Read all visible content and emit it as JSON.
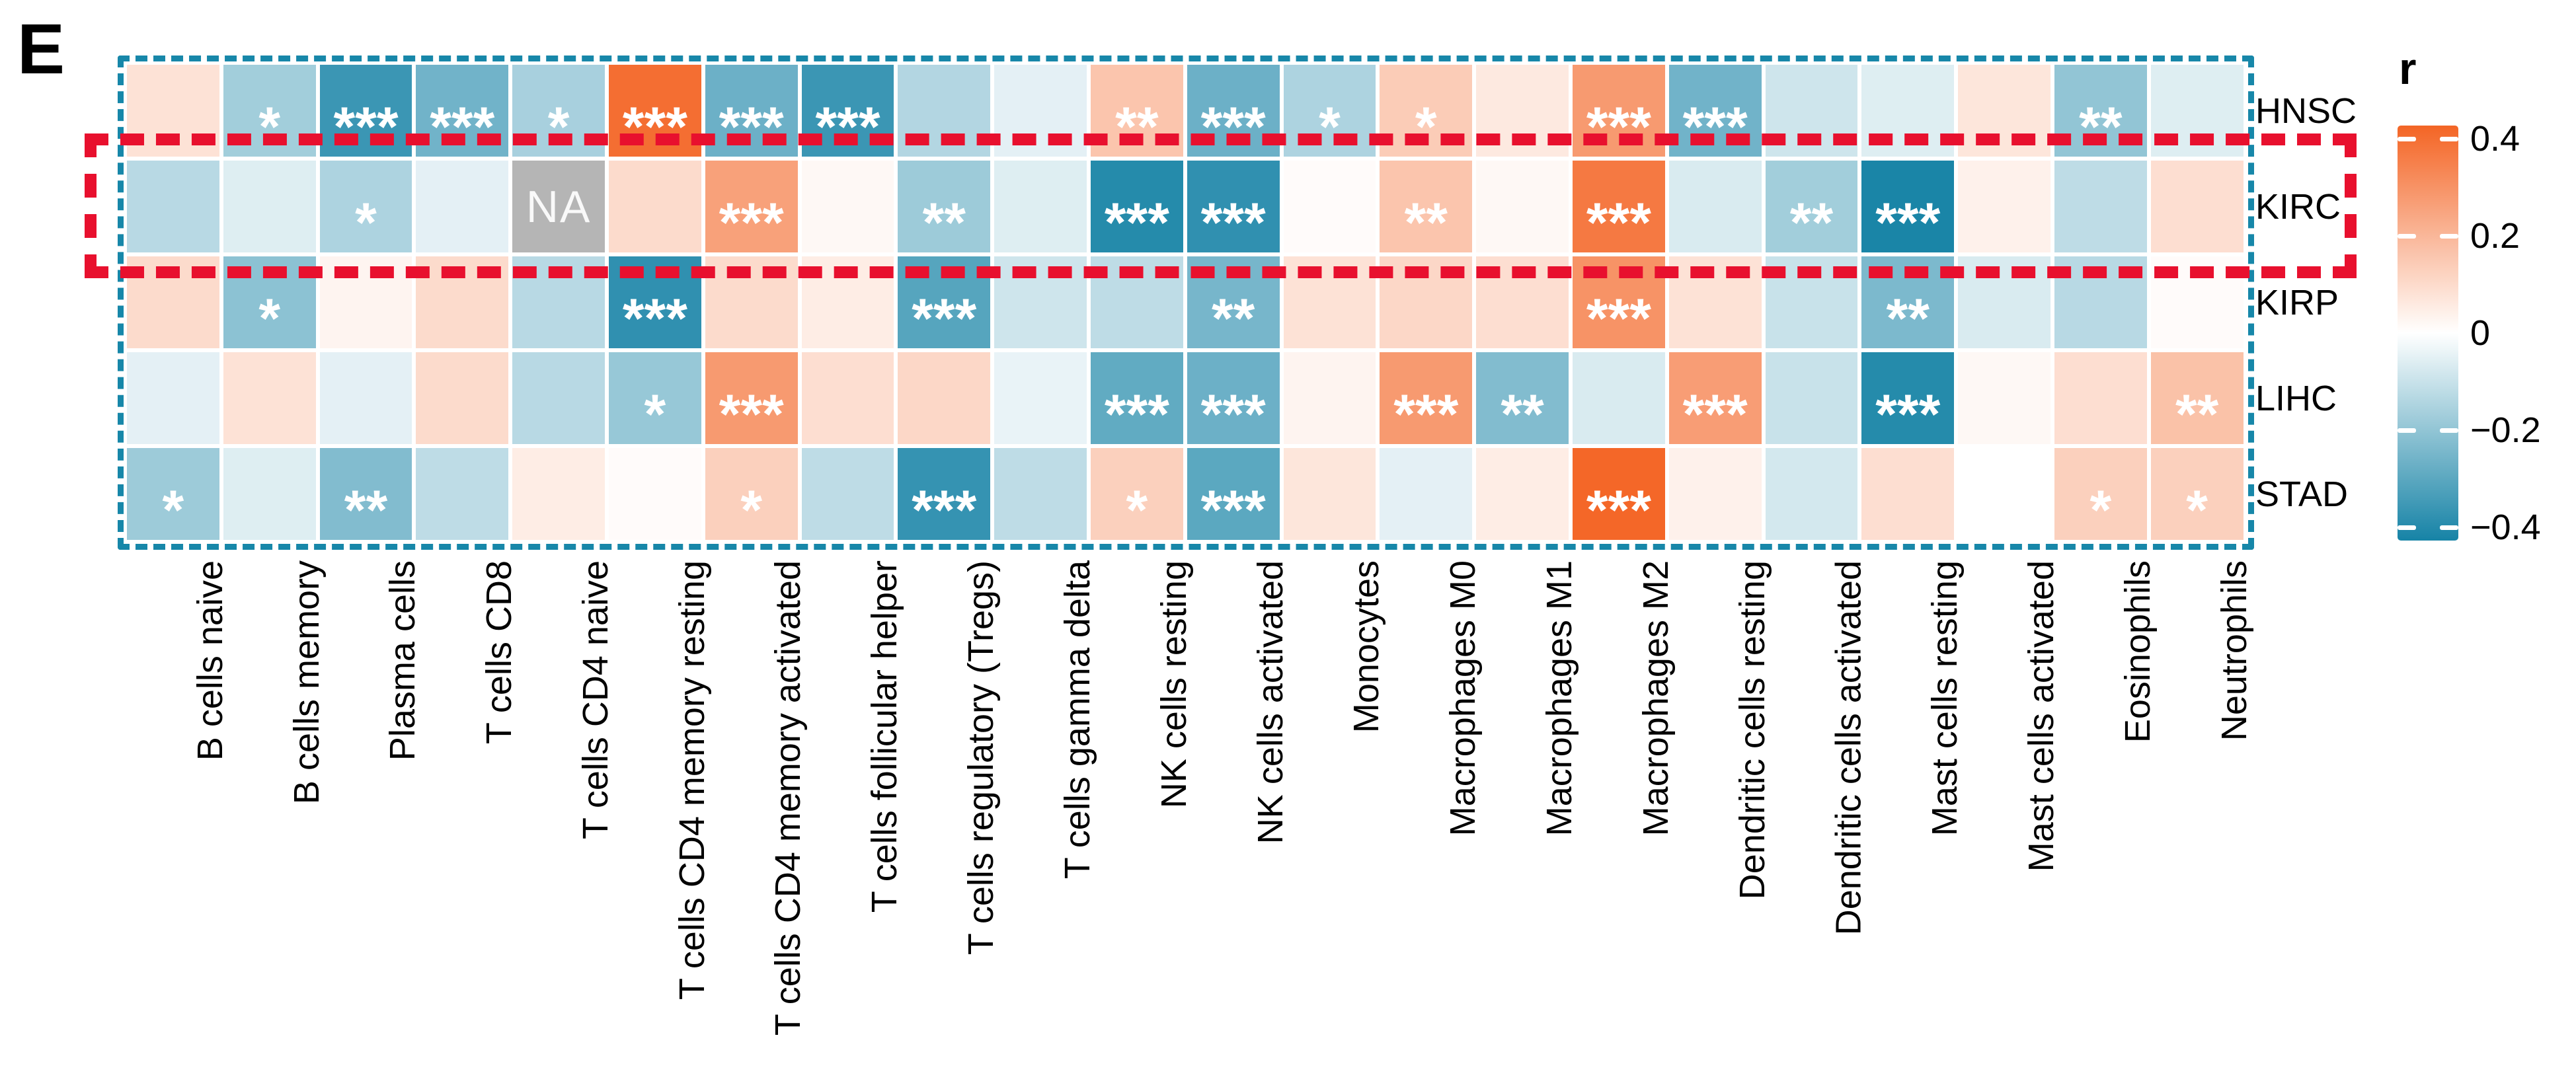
{
  "panel_label": "E",
  "na_label": "NA",
  "highlighted_row": "KIRC",
  "legend": {
    "title": "r",
    "ticks": [
      {
        "label": "0.4",
        "value": 0.4
      },
      {
        "label": "0.2",
        "value": 0.2
      },
      {
        "label": "0",
        "value": 0
      },
      {
        "label": "−0.2",
        "value": -0.2
      },
      {
        "label": "−0.4",
        "value": -0.4
      }
    ]
  },
  "colors": {
    "positive_max": "#f3601e",
    "negative_max": "#0f7fa3",
    "na_cell": "#b5b5b5",
    "na_text": "#ffffff",
    "star": "#ffffff",
    "outline_box": "#1787a9",
    "highlight_box": "#e8102e",
    "vmax": 0.44
  },
  "chart_data": {
    "type": "heatmap",
    "title": "",
    "colorbar": {
      "label": "r",
      "range": [
        -0.44,
        0.44
      ],
      "tick_values": [
        0.4,
        0.2,
        0,
        -0.2,
        -0.4
      ]
    },
    "note": "null value means NA (not available); significance codes shown as asterisks",
    "columns": [
      "B cells naive",
      "B cells memory",
      "Plasma cells",
      "T cells CD8",
      "T cells CD4 naive",
      "T cells CD4 memory resting",
      "T cells CD4 memory activated",
      "T cells follicular helper",
      "T cells regulatory (Tregs)",
      "T cells gamma delta",
      "NK cells resting",
      "NK cells activated",
      "Monocytes",
      "Macrophages M0",
      "Macrophages M1",
      "Macrophages M2",
      "Dendritic cells resting",
      "Dendritic cells activated",
      "Mast cells resting",
      "Mast cells activated",
      "Eosinophils",
      "Neutrophils"
    ],
    "rows": [
      "HNSC",
      "KIRC",
      "KIRP",
      "LIHC",
      "STAD"
    ],
    "values": [
      [
        0.08,
        -0.17,
        -0.36,
        -0.26,
        -0.16,
        0.4,
        -0.27,
        -0.36,
        -0.14,
        -0.05,
        0.16,
        -0.27,
        -0.15,
        0.14,
        0.06,
        0.28,
        -0.26,
        -0.09,
        -0.06,
        0.07,
        -0.2,
        -0.06
      ],
      [
        -0.13,
        -0.06,
        -0.15,
        -0.05,
        null,
        0.1,
        0.26,
        0.02,
        -0.18,
        -0.06,
        -0.4,
        -0.38,
        0.01,
        0.16,
        0.02,
        0.37,
        -0.07,
        -0.17,
        -0.42,
        0.04,
        -0.12,
        0.09
      ],
      [
        0.1,
        -0.21,
        0.03,
        0.1,
        -0.13,
        -0.38,
        0.1,
        0.05,
        -0.31,
        -0.09,
        -0.12,
        -0.25,
        0.08,
        0.11,
        0.09,
        0.3,
        0.08,
        -0.1,
        -0.24,
        -0.07,
        -0.13,
        0.01
      ],
      [
        -0.05,
        0.08,
        -0.05,
        0.1,
        -0.13,
        -0.19,
        0.28,
        0.09,
        0.11,
        -0.04,
        -0.29,
        -0.27,
        0.03,
        0.28,
        -0.23,
        -0.07,
        0.27,
        -0.1,
        -0.4,
        0.02,
        0.09,
        0.17
      ],
      [
        -0.18,
        -0.06,
        -0.23,
        -0.12,
        0.05,
        0.01,
        0.13,
        -0.12,
        -0.37,
        -0.12,
        0.13,
        -0.3,
        0.07,
        -0.05,
        0.05,
        0.42,
        0.04,
        -0.08,
        0.09,
        0.0,
        0.13,
        0.13
      ]
    ],
    "significance": [
      [
        "",
        "*",
        "***",
        "***",
        "*",
        "***",
        "***",
        "***",
        "",
        "",
        "**",
        "***",
        "*",
        "*",
        "",
        "***",
        "***",
        "",
        "",
        "",
        "**",
        ""
      ],
      [
        "",
        "",
        "*",
        "",
        "",
        "",
        "***",
        "",
        "**",
        "",
        "***",
        "***",
        "",
        "**",
        "",
        "***",
        "",
        "**",
        "***",
        "",
        "",
        ""
      ],
      [
        "",
        "*",
        "",
        "",
        "",
        "***",
        "",
        "",
        "***",
        "",
        "",
        "**",
        "",
        "",
        "",
        "***",
        "",
        "",
        "**",
        "",
        "",
        ""
      ],
      [
        "",
        "",
        "",
        "",
        "",
        "*",
        "***",
        "",
        "",
        "",
        "***",
        "***",
        "",
        "***",
        "**",
        "",
        "***",
        "",
        "***",
        "",
        "",
        "**"
      ],
      [
        "*",
        "",
        "**",
        "",
        "",
        "",
        "*",
        "",
        "***",
        "",
        "*",
        "***",
        "",
        "",
        "",
        "***",
        "",
        "",
        "",
        "",
        "*",
        "*"
      ]
    ]
  }
}
